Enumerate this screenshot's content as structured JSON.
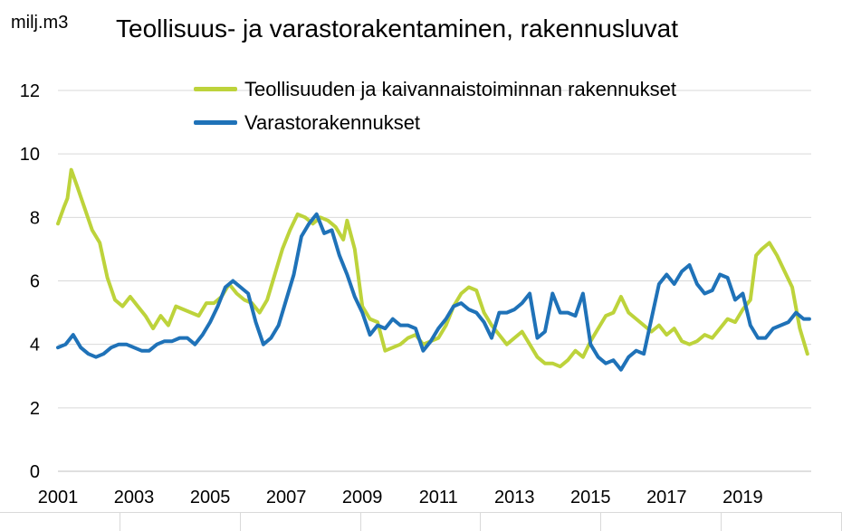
{
  "chart_data": {
    "type": "line",
    "title": "Teollisuus- ja varastorakentaminen, rakennusluvat",
    "ylabel": "milj.m3",
    "xlabel": "",
    "ylim": [
      0,
      12
    ],
    "yticks": [
      0,
      2,
      4,
      6,
      8,
      10,
      12
    ],
    "xlim": [
      2001.0,
      2020.8
    ],
    "xticks": [
      2001,
      2003,
      2005,
      2007,
      2009,
      2011,
      2013,
      2015,
      2017,
      2019
    ],
    "grid": "horizontal",
    "legend_position": "top-center",
    "series": [
      {
        "name": "Teollisuuden ja kaivannaistoiminnan rakennukset",
        "color": "#bdd33b",
        "points": [
          [
            2001.0,
            7.8
          ],
          [
            2001.15,
            8.3
          ],
          [
            2001.25,
            8.6
          ],
          [
            2001.35,
            9.5
          ],
          [
            2001.5,
            9.0
          ],
          [
            2001.7,
            8.3
          ],
          [
            2001.9,
            7.6
          ],
          [
            2002.1,
            7.2
          ],
          [
            2002.3,
            6.1
          ],
          [
            2002.5,
            5.4
          ],
          [
            2002.7,
            5.2
          ],
          [
            2002.9,
            5.5
          ],
          [
            2003.1,
            5.2
          ],
          [
            2003.3,
            4.9
          ],
          [
            2003.5,
            4.5
          ],
          [
            2003.7,
            4.9
          ],
          [
            2003.9,
            4.6
          ],
          [
            2004.1,
            5.2
          ],
          [
            2004.3,
            5.1
          ],
          [
            2004.5,
            5.0
          ],
          [
            2004.7,
            4.9
          ],
          [
            2004.9,
            5.3
          ],
          [
            2005.1,
            5.3
          ],
          [
            2005.3,
            5.5
          ],
          [
            2005.5,
            5.9
          ],
          [
            2005.7,
            5.6
          ],
          [
            2005.9,
            5.4
          ],
          [
            2006.1,
            5.3
          ],
          [
            2006.3,
            5.0
          ],
          [
            2006.5,
            5.4
          ],
          [
            2006.7,
            6.2
          ],
          [
            2006.9,
            7.0
          ],
          [
            2007.1,
            7.6
          ],
          [
            2007.3,
            8.1
          ],
          [
            2007.5,
            8.0
          ],
          [
            2007.7,
            7.8
          ],
          [
            2007.9,
            8.0
          ],
          [
            2008.1,
            7.9
          ],
          [
            2008.3,
            7.7
          ],
          [
            2008.5,
            7.3
          ],
          [
            2008.6,
            7.9
          ],
          [
            2008.8,
            7.0
          ],
          [
            2009.0,
            5.2
          ],
          [
            2009.2,
            4.8
          ],
          [
            2009.4,
            4.7
          ],
          [
            2009.6,
            3.8
          ],
          [
            2009.8,
            3.9
          ],
          [
            2010.0,
            4.0
          ],
          [
            2010.2,
            4.2
          ],
          [
            2010.4,
            4.3
          ],
          [
            2010.6,
            4.0
          ],
          [
            2010.8,
            4.1
          ],
          [
            2011.0,
            4.2
          ],
          [
            2011.2,
            4.6
          ],
          [
            2011.4,
            5.2
          ],
          [
            2011.6,
            5.6
          ],
          [
            2011.8,
            5.8
          ],
          [
            2012.0,
            5.7
          ],
          [
            2012.2,
            5.0
          ],
          [
            2012.4,
            4.6
          ],
          [
            2012.6,
            4.3
          ],
          [
            2012.8,
            4.0
          ],
          [
            2013.0,
            4.2
          ],
          [
            2013.2,
            4.4
          ],
          [
            2013.4,
            4.0
          ],
          [
            2013.6,
            3.6
          ],
          [
            2013.8,
            3.4
          ],
          [
            2014.0,
            3.4
          ],
          [
            2014.2,
            3.3
          ],
          [
            2014.4,
            3.5
          ],
          [
            2014.6,
            3.8
          ],
          [
            2014.8,
            3.6
          ],
          [
            2015.0,
            4.1
          ],
          [
            2015.2,
            4.5
          ],
          [
            2015.4,
            4.9
          ],
          [
            2015.6,
            5.0
          ],
          [
            2015.8,
            5.5
          ],
          [
            2016.0,
            5.0
          ],
          [
            2016.2,
            4.8
          ],
          [
            2016.4,
            4.6
          ],
          [
            2016.6,
            4.4
          ],
          [
            2016.8,
            4.6
          ],
          [
            2017.0,
            4.3
          ],
          [
            2017.2,
            4.5
          ],
          [
            2017.4,
            4.1
          ],
          [
            2017.6,
            4.0
          ],
          [
            2017.8,
            4.1
          ],
          [
            2018.0,
            4.3
          ],
          [
            2018.2,
            4.2
          ],
          [
            2018.4,
            4.5
          ],
          [
            2018.6,
            4.8
          ],
          [
            2018.8,
            4.7
          ],
          [
            2019.0,
            5.1
          ],
          [
            2019.2,
            5.4
          ],
          [
            2019.35,
            6.8
          ],
          [
            2019.5,
            7.0
          ],
          [
            2019.7,
            7.2
          ],
          [
            2019.9,
            6.8
          ],
          [
            2020.1,
            6.3
          ],
          [
            2020.3,
            5.8
          ],
          [
            2020.5,
            4.5
          ],
          [
            2020.7,
            3.7
          ]
        ]
      },
      {
        "name": "Varastorakennukset",
        "color": "#1f72b8",
        "points": [
          [
            2001.0,
            3.9
          ],
          [
            2001.2,
            4.0
          ],
          [
            2001.4,
            4.3
          ],
          [
            2001.6,
            3.9
          ],
          [
            2001.8,
            3.7
          ],
          [
            2002.0,
            3.6
          ],
          [
            2002.2,
            3.7
          ],
          [
            2002.4,
            3.9
          ],
          [
            2002.6,
            4.0
          ],
          [
            2002.8,
            4.0
          ],
          [
            2003.0,
            3.9
          ],
          [
            2003.2,
            3.8
          ],
          [
            2003.4,
            3.8
          ],
          [
            2003.6,
            4.0
          ],
          [
            2003.8,
            4.1
          ],
          [
            2004.0,
            4.1
          ],
          [
            2004.2,
            4.2
          ],
          [
            2004.4,
            4.2
          ],
          [
            2004.6,
            4.0
          ],
          [
            2004.8,
            4.3
          ],
          [
            2005.0,
            4.7
          ],
          [
            2005.2,
            5.2
          ],
          [
            2005.4,
            5.8
          ],
          [
            2005.6,
            6.0
          ],
          [
            2005.8,
            5.8
          ],
          [
            2006.0,
            5.6
          ],
          [
            2006.2,
            4.7
          ],
          [
            2006.4,
            4.0
          ],
          [
            2006.6,
            4.2
          ],
          [
            2006.8,
            4.6
          ],
          [
            2007.0,
            5.4
          ],
          [
            2007.2,
            6.2
          ],
          [
            2007.4,
            7.4
          ],
          [
            2007.6,
            7.8
          ],
          [
            2007.8,
            8.1
          ],
          [
            2008.0,
            7.5
          ],
          [
            2008.2,
            7.6
          ],
          [
            2008.4,
            6.8
          ],
          [
            2008.6,
            6.2
          ],
          [
            2008.8,
            5.5
          ],
          [
            2009.0,
            5.0
          ],
          [
            2009.2,
            4.3
          ],
          [
            2009.4,
            4.6
          ],
          [
            2009.6,
            4.5
          ],
          [
            2009.8,
            4.8
          ],
          [
            2010.0,
            4.6
          ],
          [
            2010.2,
            4.6
          ],
          [
            2010.4,
            4.5
          ],
          [
            2010.6,
            3.8
          ],
          [
            2010.8,
            4.1
          ],
          [
            2011.0,
            4.5
          ],
          [
            2011.2,
            4.8
          ],
          [
            2011.4,
            5.2
          ],
          [
            2011.6,
            5.3
          ],
          [
            2011.8,
            5.1
          ],
          [
            2012.0,
            5.0
          ],
          [
            2012.2,
            4.7
          ],
          [
            2012.4,
            4.2
          ],
          [
            2012.6,
            5.0
          ],
          [
            2012.8,
            5.0
          ],
          [
            2013.0,
            5.1
          ],
          [
            2013.2,
            5.3
          ],
          [
            2013.4,
            5.6
          ],
          [
            2013.6,
            4.2
          ],
          [
            2013.8,
            4.4
          ],
          [
            2014.0,
            5.6
          ],
          [
            2014.2,
            5.0
          ],
          [
            2014.4,
            5.0
          ],
          [
            2014.6,
            4.9
          ],
          [
            2014.8,
            5.6
          ],
          [
            2015.0,
            4.0
          ],
          [
            2015.2,
            3.6
          ],
          [
            2015.4,
            3.4
          ],
          [
            2015.6,
            3.5
          ],
          [
            2015.8,
            3.2
          ],
          [
            2016.0,
            3.6
          ],
          [
            2016.2,
            3.8
          ],
          [
            2016.4,
            3.7
          ],
          [
            2016.6,
            4.8
          ],
          [
            2016.8,
            5.9
          ],
          [
            2017.0,
            6.2
          ],
          [
            2017.2,
            5.9
          ],
          [
            2017.4,
            6.3
          ],
          [
            2017.6,
            6.5
          ],
          [
            2017.8,
            5.9
          ],
          [
            2018.0,
            5.6
          ],
          [
            2018.2,
            5.7
          ],
          [
            2018.4,
            6.2
          ],
          [
            2018.6,
            6.1
          ],
          [
            2018.8,
            5.4
          ],
          [
            2019.0,
            5.6
          ],
          [
            2019.2,
            4.6
          ],
          [
            2019.4,
            4.2
          ],
          [
            2019.6,
            4.2
          ],
          [
            2019.8,
            4.5
          ],
          [
            2020.0,
            4.6
          ],
          [
            2020.2,
            4.7
          ],
          [
            2020.4,
            5.0
          ],
          [
            2020.6,
            4.8
          ],
          [
            2020.75,
            4.8
          ]
        ]
      }
    ]
  }
}
